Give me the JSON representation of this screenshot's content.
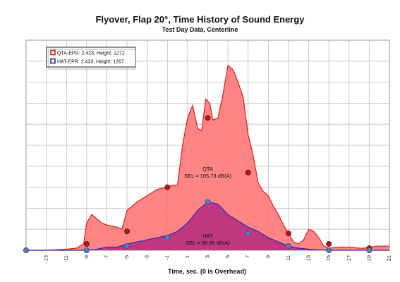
{
  "chart_data": {
    "type": "area",
    "title": "Flyover, Flap 20°, Time History of Sound Energy",
    "subtitle": "Test Day Data,  Centerline",
    "xlabel": "Time, sec. (0 is Overhead)",
    "ylabel": "",
    "xlim": [
      -13,
      21
    ],
    "ylim": [
      0,
      100
    ],
    "x_ticks": [
      -13,
      -11,
      -9,
      -7,
      -5,
      -3,
      -1,
      1,
      3,
      5,
      7,
      9,
      11,
      13,
      15,
      17,
      19,
      21
    ],
    "grid": true,
    "legend_position": "top-left",
    "series": [
      {
        "name": "QTA-EPR: 2.423, Height: 1272",
        "color": "#d42020",
        "fill": "#ff7878",
        "points": [
          [
            -15,
            0
          ],
          [
            -13,
            0
          ],
          [
            -11,
            0.5
          ],
          [
            -10,
            1
          ],
          [
            -9.3,
            3
          ],
          [
            -9,
            13
          ],
          [
            -8.5,
            17
          ],
          [
            -8,
            15
          ],
          [
            -7.5,
            13
          ],
          [
            -7,
            12
          ],
          [
            -6,
            11
          ],
          [
            -5.5,
            10
          ],
          [
            -5,
            19
          ],
          [
            -4,
            23
          ],
          [
            -3,
            26
          ],
          [
            -2,
            29
          ],
          [
            -1,
            30
          ],
          [
            -0.5,
            31
          ],
          [
            0,
            31
          ],
          [
            0.5,
            50
          ],
          [
            1,
            63
          ],
          [
            1.5,
            69
          ],
          [
            2,
            58
          ],
          [
            2.4,
            57
          ],
          [
            2.8,
            72
          ],
          [
            3.2,
            70
          ],
          [
            3.5,
            62
          ],
          [
            4,
            63
          ],
          [
            4.5,
            74
          ],
          [
            5,
            88
          ],
          [
            5.5,
            86
          ],
          [
            6,
            80
          ],
          [
            6.5,
            73
          ],
          [
            7,
            55
          ],
          [
            7.5,
            45
          ],
          [
            8,
            32
          ],
          [
            8.5,
            28
          ],
          [
            9,
            26
          ],
          [
            9.5,
            21
          ],
          [
            10,
            17
          ],
          [
            10.5,
            12
          ],
          [
            11,
            8
          ],
          [
            11.5,
            4
          ],
          [
            12,
            3
          ],
          [
            12.5,
            5
          ],
          [
            13,
            10
          ],
          [
            13.5,
            9
          ],
          [
            14,
            6
          ],
          [
            14.5,
            2
          ],
          [
            15,
            1
          ],
          [
            16,
            1.5
          ],
          [
            17,
            1.5
          ],
          [
            18,
            1
          ],
          [
            18.5,
            1
          ],
          [
            19,
            1.5
          ],
          [
            20,
            2
          ],
          [
            21,
            2
          ]
        ]
      },
      {
        "name": "HAT-EPR: 2.433, Height: 1267",
        "color": "#2a2ab8",
        "fill": "#b42a7e",
        "points": [
          [
            -15,
            0
          ],
          [
            -13,
            0
          ],
          [
            -11,
            0
          ],
          [
            -9,
            0
          ],
          [
            -8,
            0.5
          ],
          [
            -7,
            1.5
          ],
          [
            -6,
            1.5
          ],
          [
            -5,
            3
          ],
          [
            -4,
            4
          ],
          [
            -3,
            5
          ],
          [
            -2,
            6
          ],
          [
            -1,
            7
          ],
          [
            0,
            9
          ],
          [
            1,
            13
          ],
          [
            2,
            19
          ],
          [
            3,
            23
          ],
          [
            4,
            22
          ],
          [
            5,
            17
          ],
          [
            6,
            14
          ],
          [
            7,
            11
          ],
          [
            8,
            9
          ],
          [
            9,
            6
          ],
          [
            10,
            4
          ],
          [
            11,
            2
          ],
          [
            12,
            1
          ],
          [
            13,
            0.5
          ],
          [
            15,
            0
          ],
          [
            17,
            0
          ],
          [
            19,
            0
          ],
          [
            21,
            0
          ]
        ]
      }
    ],
    "markers": [
      {
        "series": 0,
        "points": [
          [
            -15,
            0
          ],
          [
            -9,
            3
          ],
          [
            -5,
            9
          ],
          [
            -1,
            30
          ],
          [
            3,
            63
          ],
          [
            7,
            37
          ],
          [
            11,
            8
          ],
          [
            15,
            3
          ],
          [
            19,
            1
          ]
        ],
        "color": "#b01818"
      },
      {
        "series": 1,
        "points": [
          [
            -15,
            0
          ],
          [
            -9,
            0
          ],
          [
            -5,
            2
          ],
          [
            -1,
            6
          ],
          [
            3,
            23
          ],
          [
            7,
            8
          ],
          [
            11,
            2
          ],
          [
            15,
            0
          ],
          [
            19,
            0
          ]
        ],
        "color": "#5a7ab8"
      }
    ],
    "annotations": [
      {
        "text_lines": [
          "QTA",
          "SEL = 105.73  dB(A)"
        ],
        "x": 3,
        "y": 38
      },
      {
        "text_lines": [
          "HAT",
          "SEL = 98.65  dB(A)"
        ],
        "x": 3,
        "y": 6
      }
    ]
  }
}
